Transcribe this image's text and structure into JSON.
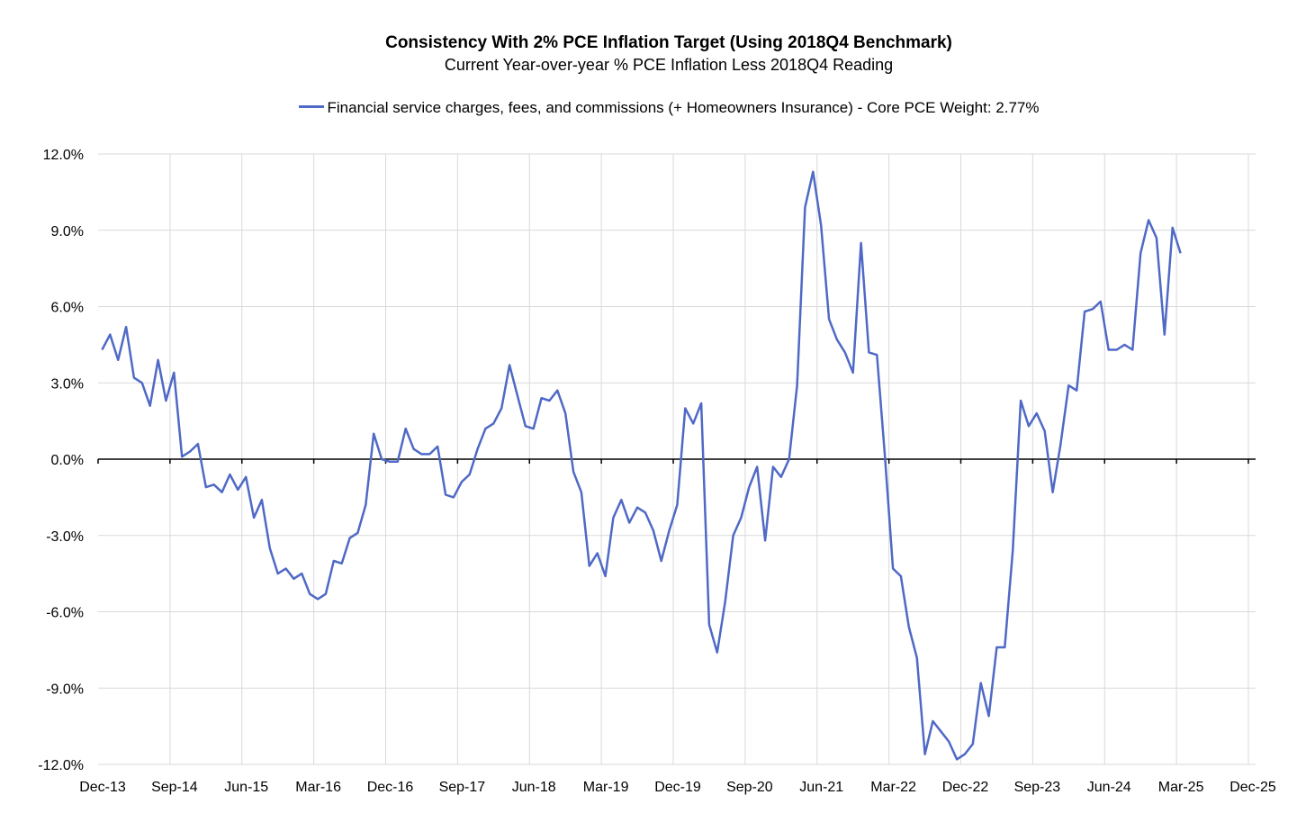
{
  "chart_data": {
    "type": "line",
    "title": "Consistency With 2% PCE Inflation Target (Using 2018Q4 Benchmark)",
    "subtitle": "Current Year-over-year % PCE Inflation Less 2018Q4 Reading",
    "xlabel": "",
    "ylabel": "",
    "ylim": [
      -12,
      12
    ],
    "y_ticks": [
      12,
      9,
      6,
      3,
      0,
      -3,
      -6,
      -9,
      -12
    ],
    "y_tick_labels": [
      "12.0%",
      "9.0%",
      "6.0%",
      "3.0%",
      "0.0%",
      "-3.0%",
      "-6.0%",
      "-9.0%",
      "-12.0%"
    ],
    "x_tick_labels": [
      "Dec-13",
      "Sep-14",
      "Jun-15",
      "Mar-16",
      "Dec-16",
      "Sep-17",
      "Jun-18",
      "Mar-19",
      "Dec-19",
      "Sep-20",
      "Jun-21",
      "Mar-22",
      "Dec-22",
      "Sep-23",
      "Jun-24",
      "Mar-25",
      "Dec-25"
    ],
    "x_start": "Dec-13",
    "x_end": "Dec-25",
    "grid": "vertical and horizontal",
    "legend_position": "top-center",
    "color": "#4F69C6",
    "series": [
      {
        "name": "Financial service charges, fees, and commissions (+ Homeowners Insurance) - Core PCE Weight: 2.77%",
        "start": "Dec-13",
        "frequency": "monthly",
        "values": [
          4.3,
          4.9,
          3.9,
          5.2,
          3.2,
          3.0,
          2.1,
          3.9,
          2.3,
          3.4,
          0.1,
          0.3,
          0.6,
          -1.1,
          -1.0,
          -1.3,
          -0.6,
          -1.2,
          -0.7,
          -2.3,
          -1.6,
          -3.5,
          -4.5,
          -4.3,
          -4.7,
          -4.5,
          -5.3,
          -5.5,
          -5.3,
          -4.0,
          -4.1,
          -3.1,
          -2.9,
          -1.8,
          1.0,
          0.0,
          -0.1,
          -0.1,
          1.2,
          0.4,
          0.2,
          0.2,
          0.5,
          -1.4,
          -1.5,
          -0.9,
          -0.6,
          0.4,
          1.2,
          1.4,
          2.0,
          3.7,
          2.5,
          1.3,
          1.2,
          2.4,
          2.3,
          2.7,
          1.8,
          -0.5,
          -1.3,
          -4.2,
          -3.7,
          -4.6,
          -2.3,
          -1.6,
          -2.5,
          -1.9,
          -2.1,
          -2.8,
          -4.0,
          -2.8,
          -1.8,
          2.0,
          1.4,
          2.2,
          -6.5,
          -7.6,
          -5.6,
          -3.0,
          -2.3,
          -1.1,
          -0.3,
          -3.2,
          -0.3,
          -0.7,
          0.0,
          2.9,
          9.9,
          11.3,
          9.2,
          5.5,
          4.7,
          4.2,
          3.4,
          8.5,
          4.2,
          4.1,
          0.1,
          -4.3,
          -4.6,
          -6.6,
          -7.8,
          -11.6,
          -10.3,
          -10.7,
          -11.1,
          -11.8,
          -11.6,
          -11.2,
          -8.8,
          -10.1,
          -7.4,
          -7.4,
          -3.6,
          2.3,
          1.3,
          1.8,
          1.1,
          -1.3,
          0.6,
          2.9,
          2.7,
          5.8,
          5.9,
          6.2,
          4.3,
          4.3,
          4.5,
          4.3,
          8.1,
          9.4,
          8.7,
          4.9,
          9.1,
          8.1
        ]
      }
    ]
  }
}
